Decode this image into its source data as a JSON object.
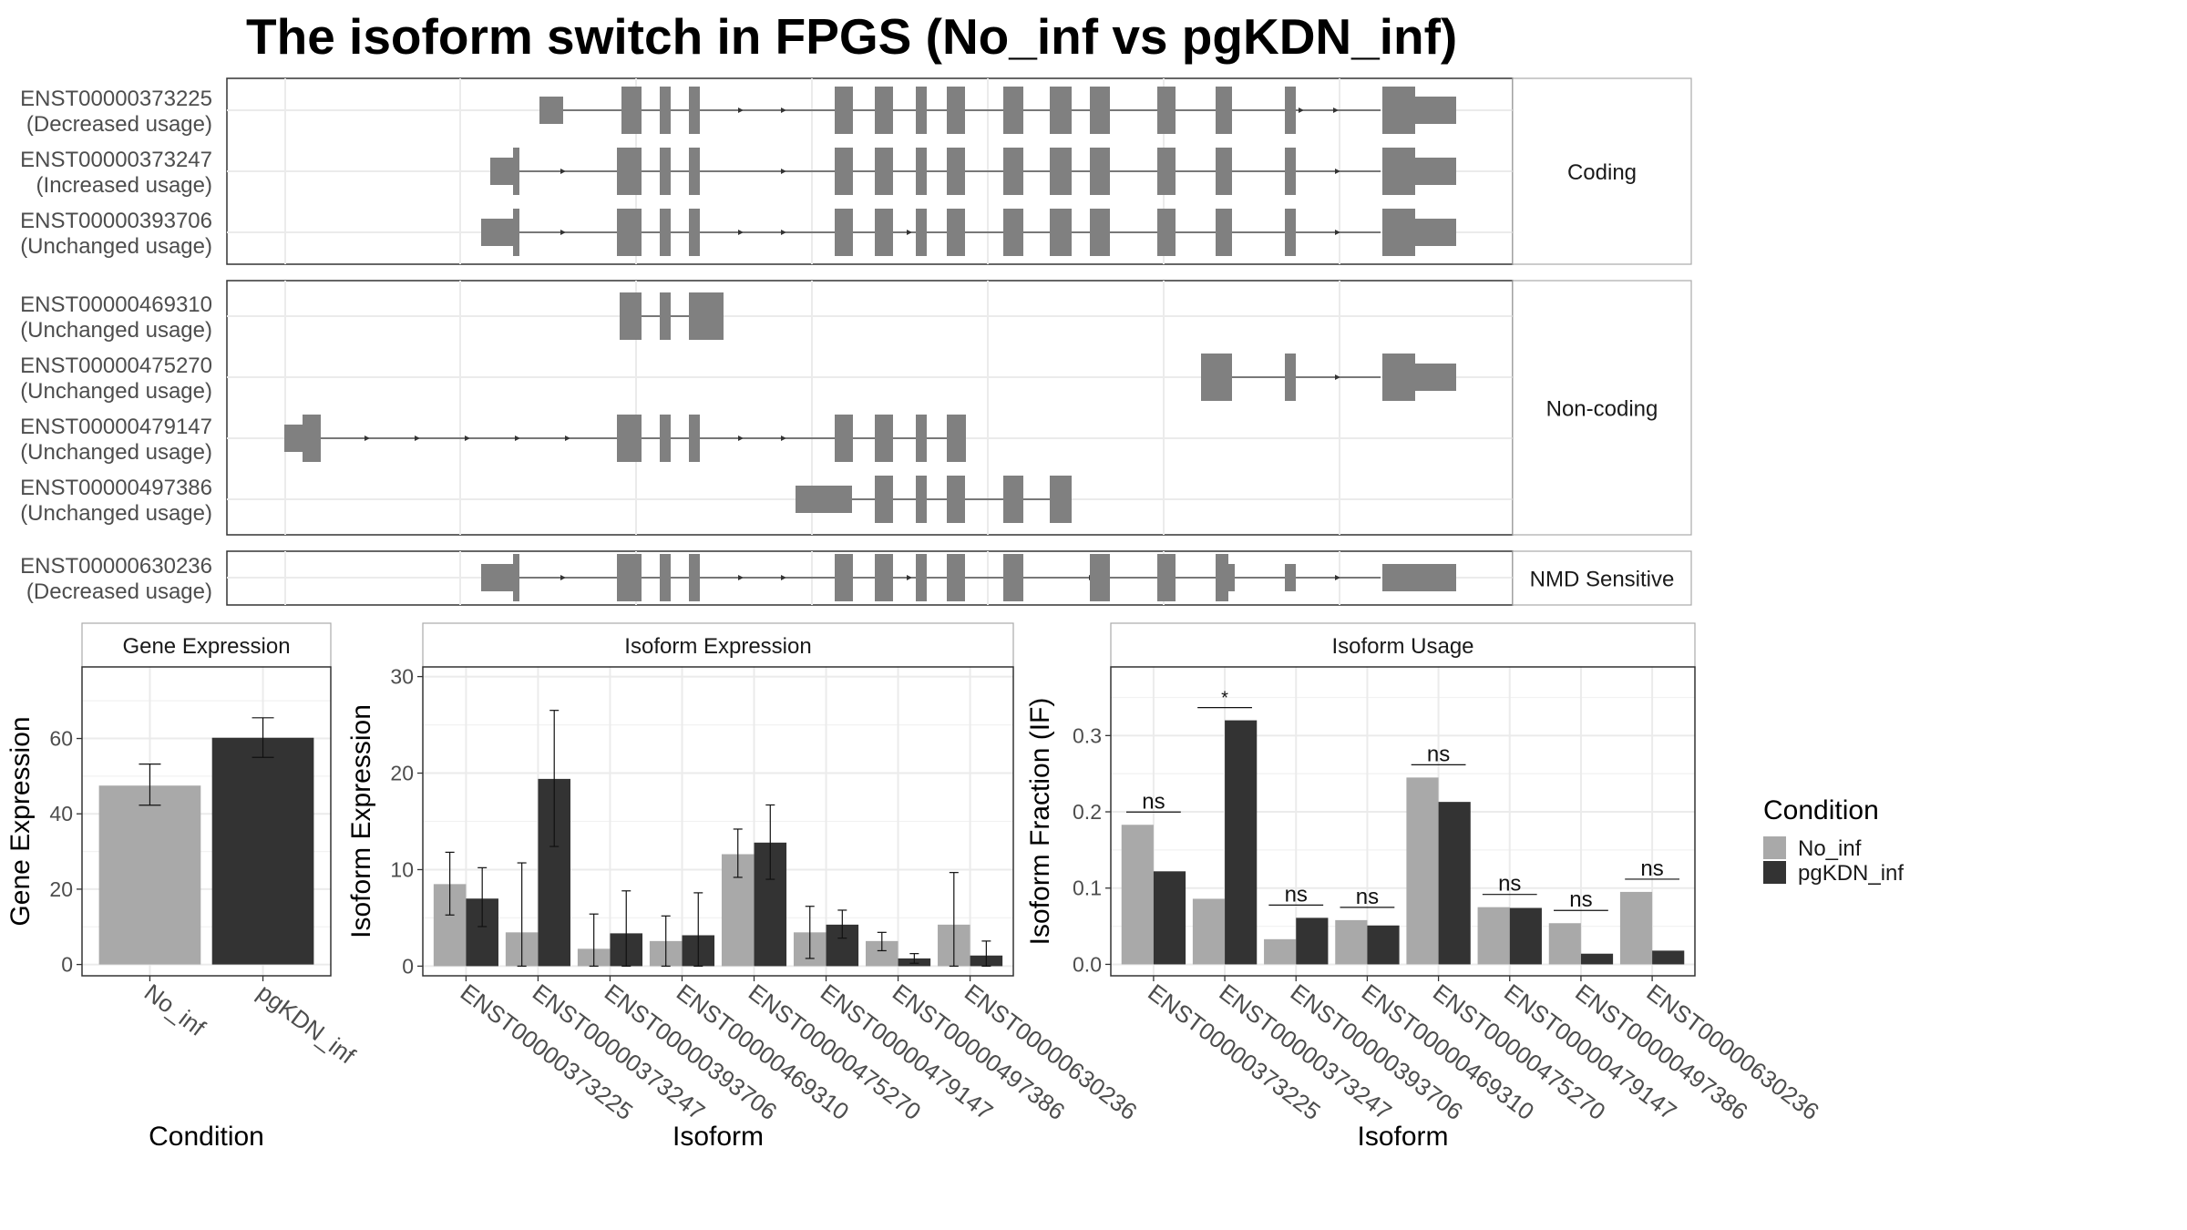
{
  "title": "The isoform switch in FPGS (No_inf vs pgKDN_inf)",
  "colors": {
    "no_inf": "#a9a9a9",
    "pgkdn_inf": "#333333",
    "exon": "#808080",
    "grid": "#ebebeb",
    "panel_border": "#333333"
  },
  "structure": {
    "groups": [
      {
        "label": "Coding",
        "transcripts": [
          {
            "id": "ENST00000373225",
            "usage": "(Decreased usage)"
          },
          {
            "id": "ENST00000373247",
            "usage": "(Increased usage)"
          },
          {
            "id": "ENST00000393706",
            "usage": "(Unchanged usage)"
          }
        ]
      },
      {
        "label": "Non-coding",
        "transcripts": [
          {
            "id": "ENST00000469310",
            "usage": "(Unchanged usage)"
          },
          {
            "id": "ENST00000475270",
            "usage": "(Unchanged usage)"
          },
          {
            "id": "ENST00000479147",
            "usage": "(Unchanged usage)"
          },
          {
            "id": "ENST00000497386",
            "usage": "(Unchanged usage)"
          }
        ]
      },
      {
        "label": "NMD Sensitive",
        "transcripts": [
          {
            "id": "ENST00000630236",
            "usage": "(Decreased usage)"
          }
        ]
      }
    ]
  },
  "chart_data": [
    {
      "type": "bar",
      "strip": "Gene Expression",
      "xlabel": "Condition",
      "ylabel": "Gene Expression",
      "categories": [
        "No_inf",
        "pgKDN_inf"
      ],
      "values": [
        47.5,
        60.2
      ],
      "error_low": [
        42.3,
        55.0
      ],
      "error_high": [
        53.2,
        65.5
      ],
      "ylim": [
        -3,
        79
      ],
      "yticks": [
        0,
        20,
        40,
        60
      ]
    },
    {
      "type": "bar",
      "strip": "Isoform Expression",
      "xlabel": "Isoform",
      "ylabel": "Isoform Expression",
      "categories": [
        "ENST00000373225",
        "ENST00000373247",
        "ENST00000393706",
        "ENST00000469310",
        "ENST00000475270",
        "ENST00000479147",
        "ENST00000497386",
        "ENST00000630236"
      ],
      "series": [
        {
          "name": "No_inf",
          "values": [
            8.5,
            3.5,
            1.8,
            2.6,
            11.6,
            3.5,
            2.6,
            4.3
          ],
          "error_low": [
            5.3,
            0.0,
            0.0,
            0.0,
            9.2,
            0.8,
            1.6,
            0.0
          ],
          "error_high": [
            11.8,
            10.7,
            5.4,
            5.2,
            14.2,
            6.2,
            3.5,
            9.7
          ]
        },
        {
          "name": "pgKDN_inf",
          "values": [
            7.0,
            19.4,
            3.4,
            3.2,
            12.8,
            4.3,
            0.8,
            1.1
          ],
          "error_low": [
            4.1,
            12.4,
            0.0,
            0.0,
            9.0,
            2.9,
            0.3,
            0.0
          ],
          "error_high": [
            10.2,
            26.5,
            7.8,
            7.6,
            16.7,
            5.8,
            1.3,
            2.6
          ]
        }
      ],
      "ylim": [
        -1,
        31
      ],
      "yticks": [
        0,
        10,
        20,
        30
      ]
    },
    {
      "type": "bar",
      "strip": "Isoform Usage",
      "xlabel": "Isoform",
      "ylabel": "Isoform Fraction (IF)",
      "categories": [
        "ENST00000373225",
        "ENST00000373247",
        "ENST00000393706",
        "ENST00000469310",
        "ENST00000475270",
        "ENST00000479147",
        "ENST00000497386",
        "ENST00000630236"
      ],
      "series": [
        {
          "name": "No_inf",
          "values": [
            0.183,
            0.086,
            0.033,
            0.058,
            0.245,
            0.075,
            0.054,
            0.095
          ]
        },
        {
          "name": "pgKDN_inf",
          "values": [
            0.122,
            0.32,
            0.061,
            0.051,
            0.213,
            0.074,
            0.014,
            0.018
          ]
        }
      ],
      "significance": [
        "ns",
        "*",
        "ns",
        "ns",
        "ns",
        "ns",
        "ns",
        "ns"
      ],
      "ylim": [
        -0.015,
        0.39
      ],
      "yticks": [
        0.0,
        0.1,
        0.2,
        0.3
      ],
      "ytick_labels": [
        "0.0",
        "0.1",
        "0.2",
        "0.3"
      ]
    }
  ],
  "legend": {
    "title": "Condition",
    "items": [
      {
        "label": "No_inf",
        "color": "#a9a9a9"
      },
      {
        "label": "pgKDN_inf",
        "color": "#333333"
      }
    ]
  }
}
